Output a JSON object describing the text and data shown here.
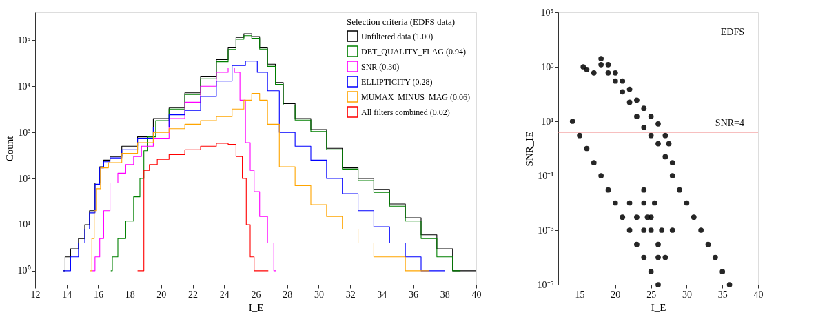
{
  "chart_data": [
    {
      "type": "step",
      "xlabel": "I_E",
      "ylabel": "Count",
      "legend_title": "Selection criteria (EDFS data)",
      "legend": "top right",
      "log": "y",
      "grid": false,
      "xlim": [
        12,
        40
      ],
      "xticks": [
        12,
        14,
        16,
        18,
        20,
        22,
        24,
        26,
        28,
        30,
        32,
        34,
        36,
        38,
        40
      ],
      "ylim": [
        0.5,
        400000
      ],
      "yticks": [
        {
          "value": 1,
          "label": "10⁰"
        },
        {
          "value": 10,
          "label": "10¹"
        },
        {
          "value": 100,
          "label": "10²"
        },
        {
          "value": 1000,
          "label": "10³"
        },
        {
          "value": 10000,
          "label": "10⁴"
        },
        {
          "value": 100000,
          "label": "10⁵"
        }
      ],
      "series": [
        {
          "name": "Unfiltered data (1.00)",
          "color": "#000000",
          "x": [
            13.8,
            14,
            14.5,
            15,
            15.3,
            15.6,
            16,
            16.2,
            16.5,
            17,
            18,
            19,
            20,
            21,
            22,
            23,
            24,
            24.5,
            25,
            25.5,
            26,
            26.5,
            27,
            27.5,
            28,
            29,
            30,
            31,
            32,
            33,
            34,
            35,
            36,
            37,
            38,
            39,
            40
          ],
          "values": [
            1,
            2,
            3,
            5,
            10,
            20,
            80,
            180,
            250,
            300,
            500,
            800,
            2000,
            3500,
            7200,
            16000,
            38000,
            70000,
            115000,
            138000,
            120000,
            70000,
            30000,
            12000,
            4200,
            2000,
            1150,
            450,
            170,
            100,
            58,
            28,
            14,
            6,
            3,
            1,
            1
          ]
        },
        {
          "name": "DET_QUALITY_FLAG (0.94)",
          "color": "#008000",
          "x": [
            16.8,
            17,
            17.5,
            18,
            18.5,
            18.8,
            19,
            19.3,
            20,
            21,
            22,
            23,
            24,
            24.5,
            25,
            25.5,
            26,
            26.5,
            27,
            27.5,
            28,
            29,
            30,
            31,
            32,
            33,
            34,
            35,
            36,
            37,
            38,
            39
          ],
          "values": [
            1,
            2,
            5,
            12,
            40,
            100,
            400,
            800,
            1800,
            3200,
            6600,
            14500,
            34000,
            63000,
            105000,
            125000,
            110000,
            64000,
            27000,
            11000,
            3900,
            1850,
            1050,
            420,
            160,
            90,
            50,
            25,
            12,
            5,
            2,
            1
          ]
        },
        {
          "name": "SNR (0.30)",
          "color": "#ff00ff",
          "x": [
            15.6,
            16,
            16.2,
            16.5,
            17,
            17.5,
            18,
            18.5,
            19,
            20,
            21,
            22,
            23,
            24,
            24.5,
            24.8,
            25.2,
            25.5,
            25.8,
            26,
            26.5,
            27,
            27.3
          ],
          "values": [
            1,
            2,
            5,
            20,
            80,
            130,
            200,
            300,
            500,
            750,
            2000,
            4500,
            10000,
            20000,
            25000,
            20000,
            5000,
            600,
            150,
            52,
            15,
            4,
            1
          ]
        },
        {
          "name": "ELLIPTICITY (0.28)",
          "color": "#0000ff",
          "x": [
            13.8,
            14,
            14.5,
            15,
            15.3,
            15.6,
            16,
            16.2,
            16.5,
            17,
            18,
            19,
            20,
            21,
            22,
            23,
            24,
            25,
            25.7,
            26.5,
            27,
            28,
            29,
            30,
            31,
            32,
            33,
            34,
            35,
            36,
            37,
            38
          ],
          "values": [
            1,
            1,
            2,
            4,
            8,
            18,
            75,
            170,
            230,
            280,
            420,
            750,
            1300,
            2400,
            3000,
            6000,
            13000,
            28000,
            35000,
            20000,
            8000,
            1000,
            500,
            250,
            100,
            47,
            20,
            9,
            4,
            2,
            1,
            1
          ]
        },
        {
          "name": "MUMAX_MINUS_MAG (0.06)",
          "color": "#ffa500",
          "x": [
            15.5,
            15.7,
            15.8,
            16,
            16.3,
            17,
            18,
            19,
            20,
            21,
            22,
            23,
            24,
            25,
            25.5,
            26,
            26.5,
            27,
            28,
            29,
            30,
            31,
            32,
            33,
            34,
            35,
            36,
            37
          ],
          "values": [
            1,
            5,
            20,
            60,
            170,
            220,
            350,
            600,
            1000,
            1200,
            1500,
            1800,
            2200,
            3200,
            5000,
            7000,
            5000,
            1500,
            180,
            70,
            27,
            15,
            8,
            4,
            2,
            2,
            1,
            1
          ]
        },
        {
          "name": "All filters combined (0.02)",
          "color": "#ff0000",
          "x": [
            18.5,
            18.8,
            19,
            19.5,
            20,
            21,
            22,
            23,
            24,
            24.5,
            25,
            25.3,
            25.5,
            25.8,
            26,
            26.5,
            26.8
          ],
          "values": [
            1,
            1,
            150,
            200,
            260,
            330,
            420,
            500,
            580,
            550,
            300,
            100,
            10,
            2,
            1,
            1,
            1
          ]
        }
      ]
    },
    {
      "type": "scatter",
      "xlabel": "I_E",
      "ylabel": "SNR_IE",
      "log": "y",
      "grid": false,
      "annotations": [
        "EDFS"
      ],
      "xlim": [
        12,
        40
      ],
      "xticks": [
        15,
        20,
        25,
        30,
        35,
        40
      ],
      "ylim": [
        1e-05,
        100000
      ],
      "yticks": [
        {
          "value": 1e-05,
          "label": "10⁻⁵"
        },
        {
          "value": 0.001,
          "label": "10⁻³"
        },
        {
          "value": 0.1,
          "label": "10⁻¹"
        },
        {
          "value": 10,
          "label": "10¹"
        },
        {
          "value": 1000,
          "label": "10³"
        },
        {
          "value": 100000,
          "label": "10⁵"
        }
      ],
      "ref_lines": [
        {
          "axis": "y",
          "value": 4,
          "label": "SNR=4",
          "color": "#f08080"
        }
      ],
      "series": [
        {
          "color": "#000000",
          "x": [
            15.5,
            16,
            17,
            18,
            18,
            19,
            19,
            20,
            20,
            21,
            21,
            22,
            22,
            23,
            23,
            24,
            24,
            25,
            25,
            26,
            26,
            27,
            27,
            27.5,
            28,
            28,
            29,
            30,
            31,
            32,
            33,
            34,
            35,
            36,
            14,
            15,
            16,
            17,
            18,
            19,
            20,
            21,
            22,
            23,
            24,
            25,
            26,
            22,
            23,
            24,
            25,
            26,
            24,
            25,
            26,
            24.5,
            25.5,
            26.5,
            24,
            27,
            28
          ],
          "values": [
            1000,
            800,
            600,
            1200,
            2000,
            600,
            1200,
            300,
            600,
            120,
            300,
            50,
            150,
            15,
            60,
            6,
            30,
            3,
            15,
            1.5,
            8,
            0.5,
            3,
            1.5,
            0.1,
            0.3,
            0.03,
            0.01,
            0.003,
            0.001,
            0.0003,
            0.0001,
            3e-05,
            1e-05,
            10,
            3,
            1,
            0.3,
            0.1,
            0.03,
            0.01,
            0.003,
            0.001,
            0.0003,
            0.0001,
            3e-05,
            1e-05,
            0.01,
            0.003,
            0.001,
            0.001,
            0.0003,
            0.01,
            0.003,
            0.0001,
            0.003,
            0.01,
            0.001,
            0.03,
            0.0001,
            0.001
          ]
        }
      ]
    }
  ]
}
